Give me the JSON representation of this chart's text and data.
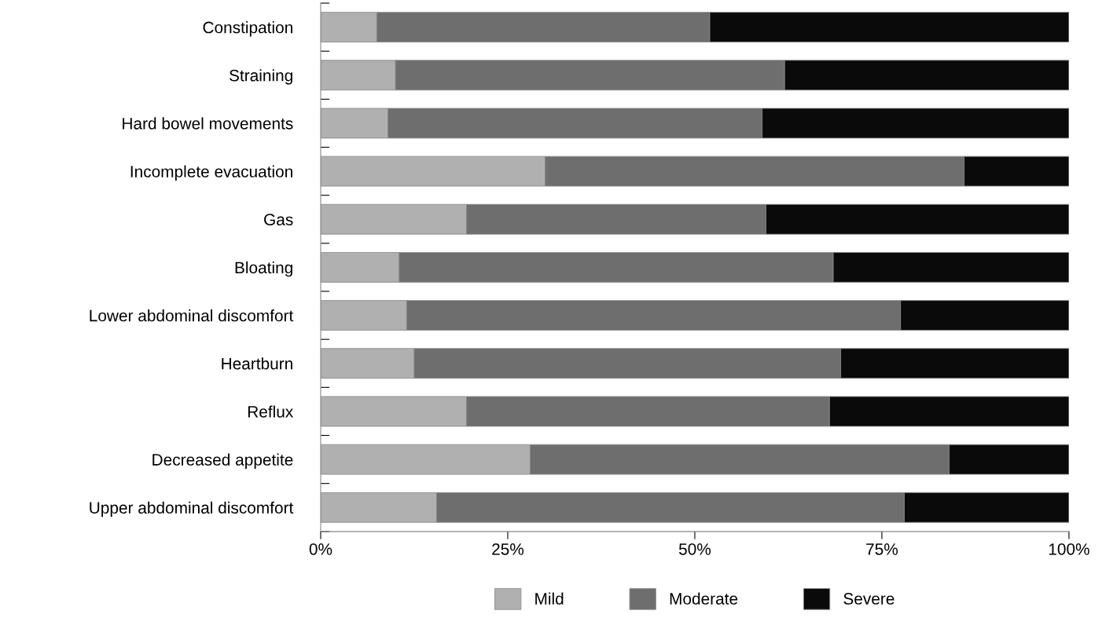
{
  "chart_data": {
    "type": "bar",
    "orientation": "horizontal",
    "stacked": true,
    "categories": [
      "Constipation",
      "Straining",
      "Hard bowel movements",
      "Incomplete evacuation",
      "Gas",
      "Bloating",
      "Lower abdominal discomfort",
      "Heartburn",
      "Reflux",
      "Decreased appetite",
      "Upper abdominal discomfort"
    ],
    "series": [
      {
        "name": "Mild",
        "color": "#b0b0b0",
        "values": [
          7.5,
          10,
          9,
          30,
          19.5,
          10.5,
          11.5,
          12.5,
          19.5,
          28,
          15.5
        ]
      },
      {
        "name": "Moderate",
        "color": "#6e6e6e",
        "values": [
          44.5,
          52,
          50,
          56,
          40,
          58,
          66,
          57,
          48.5,
          56,
          62.5
        ]
      },
      {
        "name": "Severe",
        "color": "#0a0a0a",
        "values": [
          48,
          38,
          41,
          14,
          40.5,
          31.5,
          22.5,
          30.5,
          32,
          16,
          22
        ]
      }
    ],
    "xlim": [
      0,
      100
    ],
    "xticks": [
      {
        "value": 0,
        "label": "0%"
      },
      {
        "value": 25,
        "label": "25%"
      },
      {
        "value": 50,
        "label": "50%"
      },
      {
        "value": 75,
        "label": "75%"
      },
      {
        "value": 100,
        "label": "100%"
      }
    ],
    "grid": false,
    "legend": "bottom"
  }
}
